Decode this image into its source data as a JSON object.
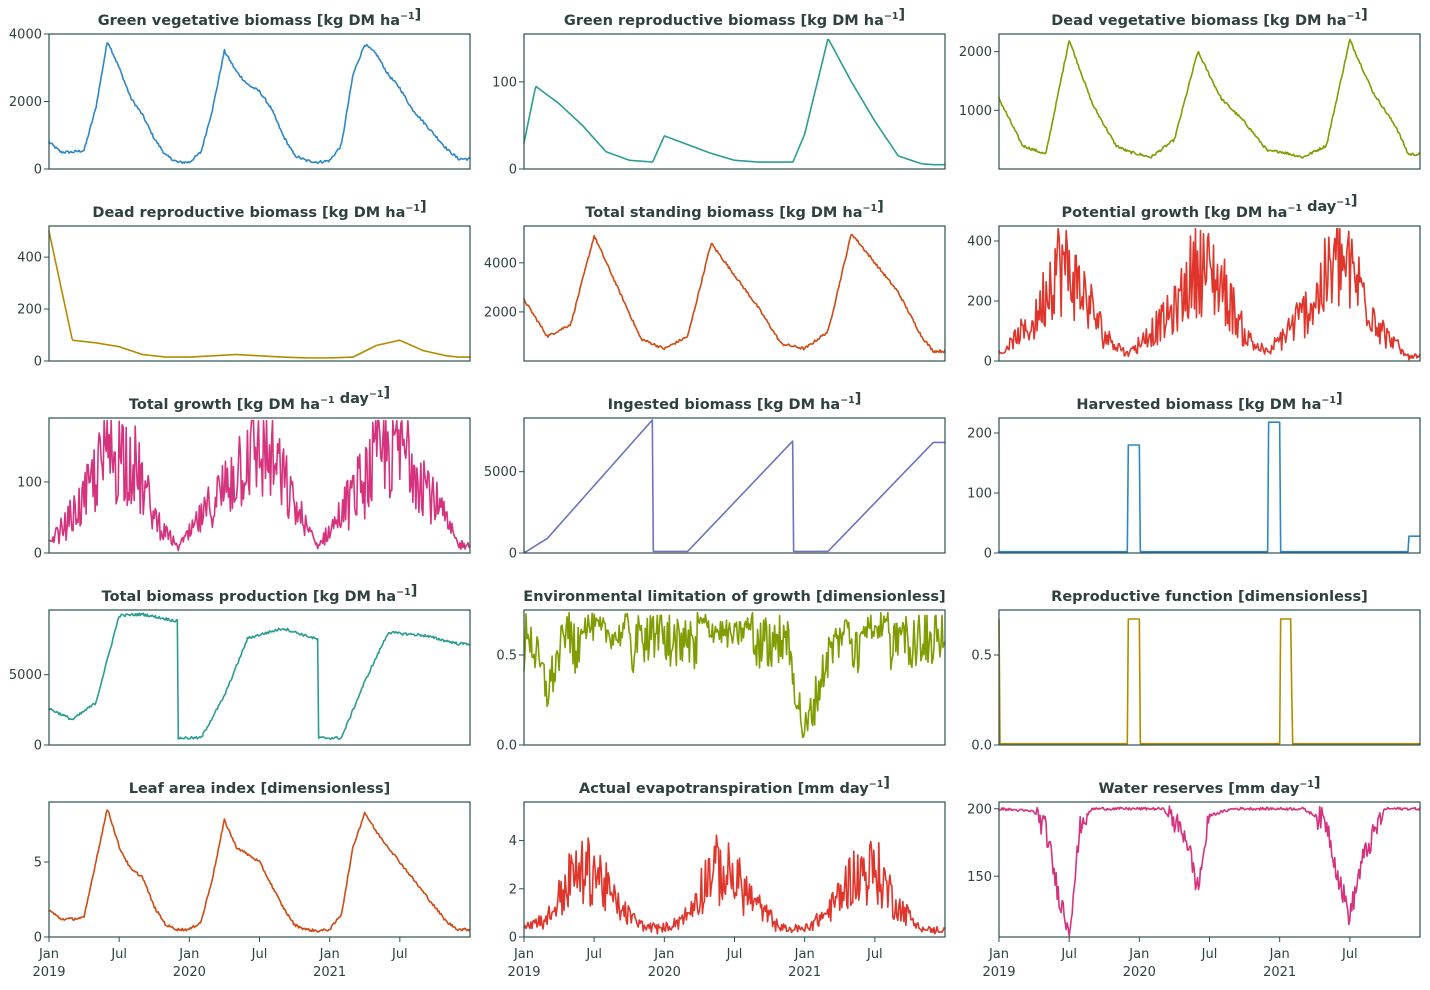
{
  "chart_data": [
    {
      "type": "line",
      "title": "Green vegetative biomass [kg DM ha⁻¹]",
      "color": "#2e86c9",
      "ylim": [
        0,
        4000
      ],
      "yticks": [
        0,
        2000,
        4000
      ],
      "generator": "seasonal",
      "series": [
        {
          "x": [
            "2019-01",
            "2019-02",
            "2019-03",
            "2019-04",
            "2019-05",
            "2019-06",
            "2019-07",
            "2019-08",
            "2019-09",
            "2019-10",
            "2019-11",
            "2019-12",
            "2020-01",
            "2020-02",
            "2020-03",
            "2020-04",
            "2020-05",
            "2020-06",
            "2020-07",
            "2020-08",
            "2020-09",
            "2020-10",
            "2020-11",
            "2020-12",
            "2021-01",
            "2021-02",
            "2021-03",
            "2021-04",
            "2021-05",
            "2021-06",
            "2021-07",
            "2021-08",
            "2021-09",
            "2021-10",
            "2021-11",
            "2021-12"
          ],
          "values": [
            800,
            500,
            500,
            550,
            1800,
            3800,
            3000,
            2100,
            1600,
            900,
            400,
            200,
            200,
            500,
            1800,
            3500,
            2900,
            2500,
            2300,
            1800,
            1000,
            400,
            250,
            200,
            250,
            700,
            2800,
            3700,
            3400,
            2800,
            2400,
            1800,
            1400,
            1000,
            600,
            300
          ]
        }
      ]
    },
    {
      "type": "line",
      "title": "Green reproductive biomass [kg DM ha⁻¹]",
      "color": "#2a9d8f",
      "ylim": [
        0,
        155
      ],
      "yticks": [
        0,
        100
      ],
      "generator": "decay",
      "series": [
        {
          "x": [
            "2019-01",
            "2019-02",
            "2019-04",
            "2019-06",
            "2019-08",
            "2019-10",
            "2019-12",
            "2020-01",
            "2020-03",
            "2020-05",
            "2020-07",
            "2020-09",
            "2020-11",
            "2020-12",
            "2021-01",
            "2021-03",
            "2021-05",
            "2021-07",
            "2021-09",
            "2021-11",
            "2021-12"
          ],
          "values": [
            30,
            95,
            75,
            50,
            20,
            10,
            8,
            38,
            28,
            18,
            10,
            8,
            8,
            8,
            40,
            150,
            100,
            55,
            15,
            6,
            5
          ]
        }
      ]
    },
    {
      "type": "line",
      "title": "Dead vegetative biomass [kg DM ha⁻¹]",
      "color": "#7f9c00",
      "ylim": [
        0,
        2300
      ],
      "yticks": [
        1000,
        2000
      ],
      "generator": "seasonal",
      "series": [
        {
          "x": [
            "2019-01",
            "2019-03",
            "2019-05",
            "2019-07",
            "2019-09",
            "2019-11",
            "2019-12",
            "2020-02",
            "2020-04",
            "2020-06",
            "2020-08",
            "2020-10",
            "2020-12",
            "2021-01",
            "2021-03",
            "2021-05",
            "2021-07",
            "2021-09",
            "2021-11",
            "2021-12"
          ],
          "values": [
            1200,
            400,
            250,
            2200,
            1100,
            400,
            300,
            200,
            500,
            2000,
            1200,
            800,
            300,
            300,
            200,
            400,
            2200,
            1300,
            700,
            250
          ]
        }
      ]
    },
    {
      "type": "line",
      "title": "Dead reproductive biomass [kg DM ha⁻¹]",
      "color": "#b38b00",
      "ylim": [
        0,
        520
      ],
      "yticks": [
        0,
        200,
        400
      ],
      "generator": "decay",
      "series": [
        {
          "x": [
            "2019-01",
            "2019-03",
            "2019-05",
            "2019-07",
            "2019-09",
            "2019-11",
            "2020-01",
            "2020-03",
            "2020-05",
            "2020-07",
            "2020-09",
            "2020-11",
            "2021-01",
            "2021-03",
            "2021-05",
            "2021-07",
            "2021-09",
            "2021-11",
            "2021-12"
          ],
          "values": [
            500,
            80,
            70,
            55,
            25,
            15,
            15,
            20,
            25,
            20,
            15,
            12,
            12,
            15,
            60,
            80,
            40,
            20,
            15
          ]
        }
      ]
    },
    {
      "type": "line",
      "title": "Total standing biomass [kg DM ha⁻¹]",
      "color": "#d14a12",
      "ylim": [
        0,
        5500
      ],
      "yticks": [
        2000,
        4000
      ],
      "generator": "seasonal",
      "series": [
        {
          "x": [
            "2019-01",
            "2019-03",
            "2019-05",
            "2019-07",
            "2019-09",
            "2019-11",
            "2020-01",
            "2020-03",
            "2020-05",
            "2020-07",
            "2020-09",
            "2020-11",
            "2021-01",
            "2021-03",
            "2021-05",
            "2021-07",
            "2021-09",
            "2021-11",
            "2021-12"
          ],
          "values": [
            2500,
            1000,
            1500,
            5100,
            3000,
            900,
            500,
            1000,
            4800,
            3500,
            2200,
            700,
            500,
            1200,
            5200,
            4000,
            2800,
            1000,
            400
          ]
        }
      ]
    },
    {
      "type": "line",
      "title": "Potential growth [kg DM ha⁻¹ day⁻¹]",
      "color": "#e0352b",
      "ylim": [
        0,
        450
      ],
      "yticks": [
        0,
        200,
        400
      ],
      "generator": "noisy",
      "series": [
        {
          "x": [
            "2019-01",
            "2019-04",
            "2019-06",
            "2019-08",
            "2019-10",
            "2019-12",
            "2020-04",
            "2020-06",
            "2020-08",
            "2020-10",
            "2020-12",
            "2021-04",
            "2021-06",
            "2021-08",
            "2021-10",
            "2021-12"
          ],
          "values": [
            20,
            150,
            420,
            300,
            100,
            20,
            200,
            410,
            320,
            100,
            20,
            250,
            430,
            300,
            100,
            10
          ]
        }
      ]
    },
    {
      "type": "line",
      "title": "Total growth [kg DM ha⁻¹ day⁻¹]",
      "color": "#d6337e",
      "ylim": [
        0,
        190
      ],
      "yticks": [
        0,
        100
      ],
      "generator": "noisy",
      "series": [
        {
          "x": [
            "2019-01",
            "2019-04",
            "2019-06",
            "2019-08",
            "2019-10",
            "2019-12",
            "2020-04",
            "2020-06",
            "2020-08",
            "2020-10",
            "2020-12",
            "2021-04",
            "2021-06",
            "2021-08",
            "2021-10",
            "2021-12"
          ],
          "values": [
            10,
            90,
            180,
            170,
            60,
            5,
            110,
            180,
            170,
            80,
            5,
            130,
            185,
            180,
            90,
            10
          ]
        }
      ]
    },
    {
      "type": "line",
      "title": "Ingested biomass [kg DM ha⁻¹]",
      "color": "#6c72c4",
      "ylim": [
        0,
        8300
      ],
      "yticks": [
        0,
        5000
      ],
      "generator": "linear",
      "series": [
        {
          "x": [
            "2019-01",
            "2019-03",
            "2019-12",
            "2019-12",
            "2020-03",
            "2020-12",
            "2020-12",
            "2021-03",
            "2021-12"
          ],
          "values": [
            0,
            900,
            8200,
            100,
            100,
            6900,
            100,
            100,
            6800
          ]
        }
      ]
    },
    {
      "type": "line",
      "title": "Harvested biomass [kg DM ha⁻¹]",
      "color": "#2e86c9",
      "ylim": [
        0,
        225
      ],
      "yticks": [
        0,
        100,
        200
      ],
      "generator": "step",
      "series": [
        {
          "x": [
            "2019-01",
            "2019-12",
            "2019-12",
            "2020-01",
            "2020-01",
            "2020-12",
            "2020-12",
            "2021-01",
            "2021-01",
            "2021-12",
            "2021-12",
            "2021-12"
          ],
          "values": [
            0,
            0,
            180,
            180,
            0,
            0,
            218,
            218,
            0,
            0,
            28,
            28
          ]
        }
      ]
    },
    {
      "type": "line",
      "title": "Total biomass production [kg DM ha⁻¹]",
      "color": "#2a9d8f",
      "ylim": [
        0,
        9600
      ],
      "yticks": [
        0,
        5000
      ],
      "generator": "seasonal",
      "series": [
        {
          "x": [
            "2019-01",
            "2019-03",
            "2019-05",
            "2019-07",
            "2019-09",
            "2019-12",
            "2019-12",
            "2020-02",
            "2020-04",
            "2020-06",
            "2020-09",
            "2020-12",
            "2020-12",
            "2021-02",
            "2021-04",
            "2021-06",
            "2021-09",
            "2021-12"
          ],
          "values": [
            2600,
            1800,
            3000,
            9200,
            9300,
            8800,
            500,
            500,
            3500,
            7600,
            8300,
            7500,
            500,
            500,
            4500,
            8000,
            7800,
            7200
          ]
        }
      ]
    },
    {
      "type": "line",
      "title": "Environmental limitation of growth [dimensionless]",
      "color": "#7f9c00",
      "ylim": [
        0,
        0.75
      ],
      "yticks": [
        0.0,
        0.5
      ],
      "generator": "noisy",
      "series": [
        {
          "x": [
            "2019-01",
            "2019-03",
            "2019-05",
            "2019-07",
            "2019-09",
            "2019-11",
            "2020-01",
            "2020-03",
            "2020-05",
            "2020-07",
            "2020-09",
            "2020-11",
            "2021-01",
            "2021-03",
            "2021-05",
            "2021-07",
            "2021-09",
            "2021-11",
            "2021-12"
          ],
          "values": [
            0.7,
            0.3,
            0.7,
            0.65,
            0.6,
            0.75,
            0.75,
            0.7,
            0.65,
            0.6,
            0.7,
            0.75,
            0.05,
            0.5,
            0.7,
            0.65,
            0.7,
            0.75,
            0.75
          ]
        }
      ]
    },
    {
      "type": "line",
      "title": "Reproductive function [dimensionless]",
      "color": "#b38b00",
      "ylim": [
        0,
        0.75
      ],
      "yticks": [
        0.0,
        0.5
      ],
      "generator": "step",
      "series": [
        {
          "x": [
            "2019-01",
            "2019-01",
            "2019-12",
            "2019-12",
            "2020-01",
            "2020-01",
            "2021-01",
            "2021-01",
            "2021-02",
            "2021-02",
            "2021-12"
          ],
          "values": [
            0.7,
            0,
            0,
            0.7,
            0.7,
            0,
            0,
            0.7,
            0.7,
            0,
            0
          ]
        }
      ]
    },
    {
      "type": "line",
      "title": "Leaf area index [dimensionless]",
      "color": "#d14a12",
      "xaxis": true,
      "ylim": [
        0,
        9
      ],
      "yticks": [
        0,
        5
      ],
      "generator": "seasonal",
      "series": [
        {
          "x": [
            "2019-01",
            "2019-02",
            "2019-03",
            "2019-04",
            "2019-05",
            "2019-06",
            "2019-07",
            "2019-08",
            "2019-09",
            "2019-10",
            "2019-11",
            "2019-12",
            "2020-01",
            "2020-02",
            "2020-03",
            "2020-04",
            "2020-05",
            "2020-06",
            "2020-07",
            "2020-08",
            "2020-09",
            "2020-10",
            "2020-11",
            "2020-12",
            "2021-01",
            "2021-02",
            "2021-03",
            "2021-04",
            "2021-05",
            "2021-06",
            "2021-07",
            "2021-08",
            "2021-09",
            "2021-11",
            "2021-12"
          ],
          "values": [
            1.8,
            1.2,
            1.2,
            1.3,
            5.0,
            8.6,
            6.0,
            4.5,
            4.0,
            2.0,
            0.8,
            0.5,
            0.5,
            1.0,
            4.0,
            7.8,
            6.0,
            5.5,
            5.0,
            3.5,
            2.0,
            0.8,
            0.5,
            0.4,
            0.5,
            1.5,
            6.0,
            8.3,
            7.0,
            6.0,
            5.0,
            4.0,
            3.0,
            1.0,
            0.5
          ]
        }
      ]
    },
    {
      "type": "line",
      "title": "Actual evapotranspiration [mm day⁻¹]",
      "color": "#e0352b",
      "xaxis": true,
      "ylim": [
        0,
        5.6
      ],
      "yticks": [
        0,
        2,
        4
      ],
      "generator": "noisy",
      "series": [
        {
          "x": [
            "2019-01",
            "2019-03",
            "2019-05",
            "2019-07",
            "2019-09",
            "2019-11",
            "2020-01",
            "2020-03",
            "2020-05",
            "2020-07",
            "2020-09",
            "2020-11",
            "2021-01",
            "2021-03",
            "2021-05",
            "2021-07",
            "2021-09",
            "2021-11",
            "2021-12"
          ],
          "values": [
            0.5,
            0.8,
            3.0,
            3.5,
            1.5,
            0.5,
            0.3,
            1.0,
            3.5,
            3.0,
            1.5,
            0.3,
            0.3,
            1.2,
            3.0,
            3.5,
            1.5,
            0.3,
            0.2
          ]
        }
      ]
    },
    {
      "type": "line",
      "title": "Water reserves [mm day⁻¹]",
      "color": "#d6337e",
      "xaxis": true,
      "ylim": [
        105,
        205
      ],
      "yticks": [
        150,
        200
      ],
      "generator": "dips",
      "series": [
        {
          "x": [
            "2019-01",
            "2019-04",
            "2019-05",
            "2019-06",
            "2019-07",
            "2019-08",
            "2019-09",
            "2019-11",
            "2020-03",
            "2020-05",
            "2020-06",
            "2020-07",
            "2020-09",
            "2020-11",
            "2021-03",
            "2021-05",
            "2021-06",
            "2021-07",
            "2021-08",
            "2021-10",
            "2021-12"
          ],
          "values": [
            200,
            198,
            185,
            140,
            110,
            190,
            200,
            200,
            200,
            180,
            140,
            195,
            200,
            200,
            200,
            190,
            150,
            120,
            160,
            200,
            200
          ]
        }
      ]
    }
  ],
  "x_axis": {
    "month_labels": [
      "Jan",
      "Jul",
      "Jan",
      "Jul",
      "Jan",
      "Jul"
    ],
    "year_labels": [
      "2019",
      "2020",
      "2021"
    ]
  }
}
